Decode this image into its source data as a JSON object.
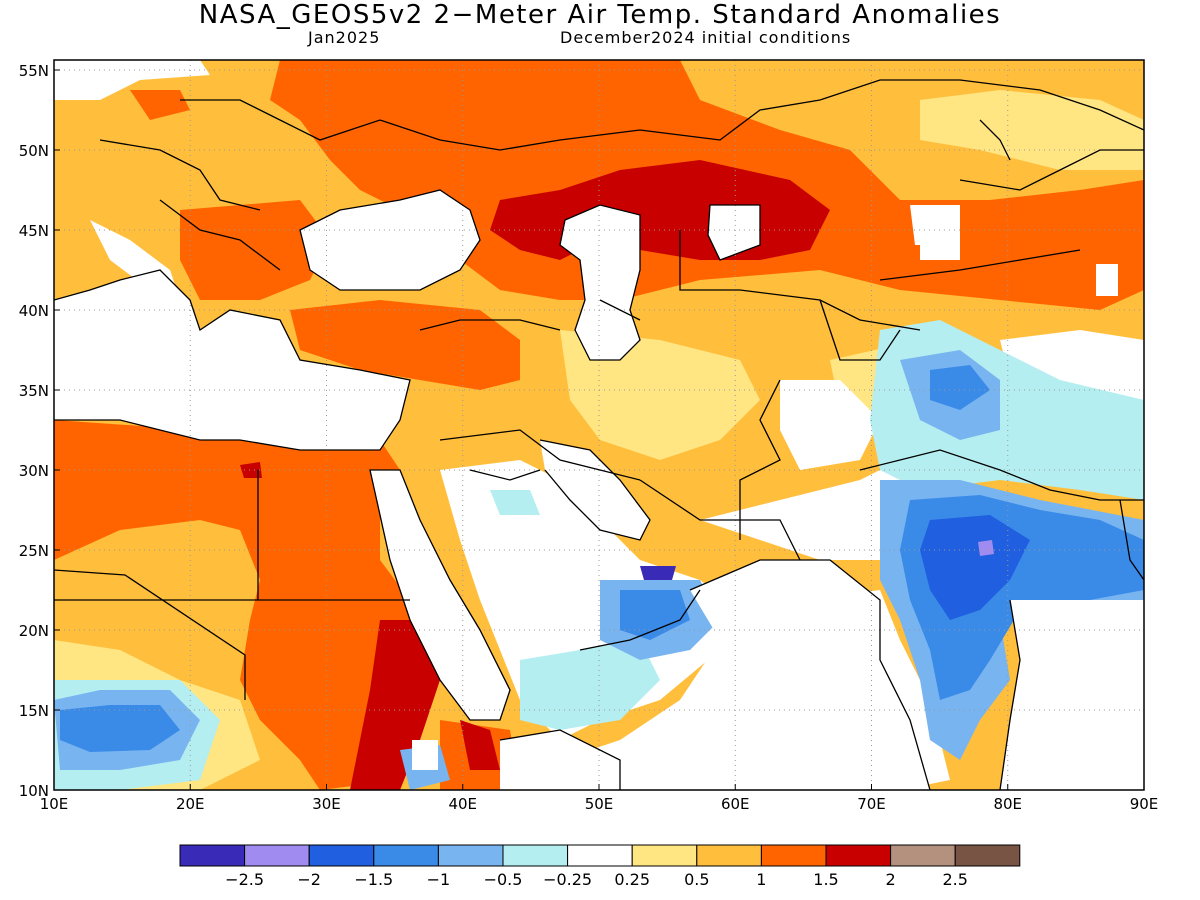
{
  "title": "NASA_GEOS5v2 2−Meter Air Temp. Standard Anomalies",
  "valid_month": "Jan2025",
  "init": "December2024 initial conditions",
  "axes": {
    "lon_ticks": [
      "10E",
      "20E",
      "30E",
      "40E",
      "50E",
      "60E",
      "70E",
      "80E",
      "90E"
    ],
    "lat_ticks": [
      "10N",
      "15N",
      "20N",
      "25N",
      "30N",
      "35N",
      "40N",
      "45N",
      "50N",
      "55N"
    ]
  },
  "colorbar": {
    "colors": [
      "#3a2ab8",
      "#a08cf0",
      "#1f5fe0",
      "#3a8ae8",
      "#78b4f0",
      "#b4eef0",
      "#ffffff",
      "#ffe682",
      "#ffbe3c",
      "#ff6400",
      "#c80000",
      "#b4907e",
      "#785444"
    ],
    "labels": [
      "−2.5",
      "−2",
      "−1.5",
      "−1",
      "−0.5",
      "−0.25",
      "0.25",
      "0.5",
      "1",
      "1.5",
      "2",
      "2.5"
    ]
  },
  "colors": {
    "ocean": "#ffffff",
    "frame": "#000000",
    "grid": "#999999"
  }
}
